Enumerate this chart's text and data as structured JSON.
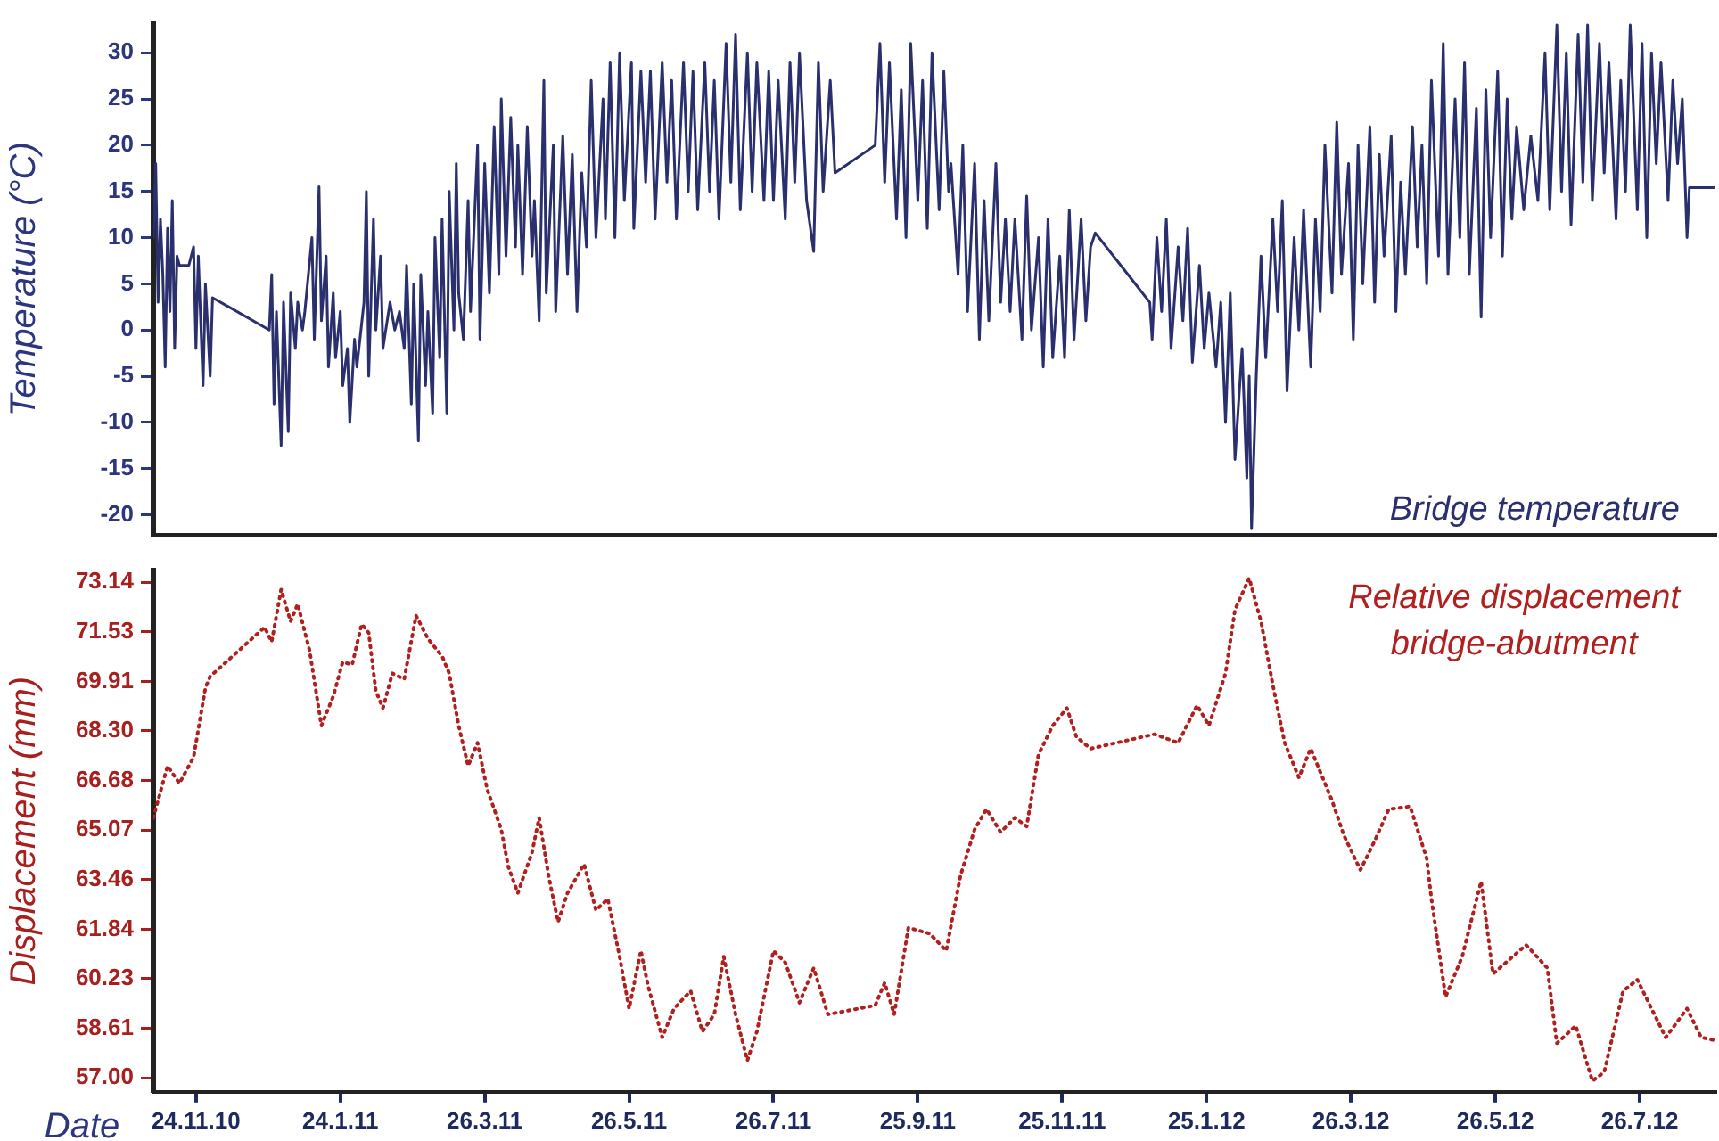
{
  "chart_data": [
    {
      "type": "line",
      "ylabel": "Temperature (°C)",
      "xlim": [
        "2010-11-06",
        "2012-08-27"
      ],
      "ylim": [
        -22.2,
        33.2
      ],
      "yticks": [
        -20,
        -15,
        -10,
        -5,
        0,
        5,
        10,
        15,
        20,
        25,
        30
      ],
      "tick_labels": "y",
      "legend": "bottom right",
      "marker": "none",
      "line_style": "solid",
      "series": [
        {
          "name": "Bridge temperature",
          "color": "#2a2f6e",
          "x": [
            "2010-11-06",
            "2010-11-07",
            "2010-11-08",
            "2010-11-09",
            "2010-11-10",
            "2010-11-11",
            "2010-11-12",
            "2010-11-13",
            "2010-11-14",
            "2010-11-15",
            "2010-11-16",
            "2010-11-17",
            "2010-11-21",
            "2010-11-23",
            "2010-11-24",
            "2010-11-25",
            "2010-11-27",
            "2010-11-28",
            "2010-11-30",
            "2010-12-01",
            "2010-12-25",
            "2010-12-26",
            "2010-12-27",
            "2010-12-28",
            "2010-12-30",
            "2010-12-31",
            "2011-01-02",
            "2011-01-03",
            "2011-01-05",
            "2011-01-06",
            "2011-01-08",
            "2011-01-09",
            "2011-01-12",
            "2011-01-13",
            "2011-01-15",
            "2011-01-16",
            "2011-01-18",
            "2011-01-19",
            "2011-01-21",
            "2011-01-22",
            "2011-01-24",
            "2011-01-25",
            "2011-01-27",
            "2011-01-28",
            "2011-01-30",
            "2011-01-31",
            "2011-02-03",
            "2011-02-04",
            "2011-02-05",
            "2011-02-07",
            "2011-02-08",
            "2011-02-10",
            "2011-02-11",
            "2011-02-14",
            "2011-02-16",
            "2011-02-18",
            "2011-02-20",
            "2011-02-21",
            "2011-02-23",
            "2011-02-24",
            "2011-02-26",
            "2011-02-27",
            "2011-03-01",
            "2011-03-02",
            "2011-03-04",
            "2011-03-05",
            "2011-03-07",
            "2011-03-08",
            "2011-03-10",
            "2011-03-11",
            "2011-03-13",
            "2011-03-14",
            "2011-03-15",
            "2011-03-17",
            "2011-03-19",
            "2011-03-20",
            "2011-03-23",
            "2011-03-24",
            "2011-03-26",
            "2011-03-28",
            "2011-03-30",
            "2011-04-01",
            "2011-04-02",
            "2011-04-04",
            "2011-04-06",
            "2011-04-08",
            "2011-04-09",
            "2011-04-11",
            "2011-04-13",
            "2011-04-15",
            "2011-04-16",
            "2011-04-18",
            "2011-04-20",
            "2011-04-21",
            "2011-04-24",
            "2011-04-25",
            "2011-04-28",
            "2011-04-30",
            "2011-05-02",
            "2011-05-04",
            "2011-05-06",
            "2011-05-08",
            "2011-05-10",
            "2011-05-12",
            "2011-05-15",
            "2011-05-16",
            "2011-05-18",
            "2011-05-20",
            "2011-05-22",
            "2011-05-24",
            "2011-05-27",
            "2011-05-28",
            "2011-05-31",
            "2011-06-02",
            "2011-06-04",
            "2011-06-06",
            "2011-06-09",
            "2011-06-11",
            "2011-06-13",
            "2011-06-15",
            "2011-06-18",
            "2011-06-20",
            "2011-06-22",
            "2011-06-24",
            "2011-06-27",
            "2011-06-29",
            "2011-07-01",
            "2011-07-03",
            "2011-07-06",
            "2011-07-08",
            "2011-07-10",
            "2011-07-12",
            "2011-07-15",
            "2011-07-17",
            "2011-07-19",
            "2011-07-22",
            "2011-07-24",
            "2011-07-26",
            "2011-07-28",
            "2011-07-31",
            "2011-08-02",
            "2011-08-04",
            "2011-08-06",
            "2011-08-09",
            "2011-08-12",
            "2011-08-14",
            "2011-08-16",
            "2011-08-19",
            "2011-08-21",
            "2011-09-07",
            "2011-09-09",
            "2011-09-11",
            "2011-09-13",
            "2011-09-16",
            "2011-09-18",
            "2011-09-20",
            "2011-09-22",
            "2011-09-25",
            "2011-09-27",
            "2011-09-29",
            "2011-10-01",
            "2011-10-04",
            "2011-10-06",
            "2011-10-08",
            "2011-10-09",
            "2011-10-12",
            "2011-10-14",
            "2011-10-16",
            "2011-10-19",
            "2011-10-21",
            "2011-10-23",
            "2011-10-25",
            "2011-10-28",
            "2011-10-30",
            "2011-11-01",
            "2011-11-03",
            "2011-11-05",
            "2011-11-08",
            "2011-11-10",
            "2011-11-12",
            "2011-11-15",
            "2011-11-17",
            "2011-11-19",
            "2011-11-21",
            "2011-11-24",
            "2011-11-26",
            "2011-11-28",
            "2011-11-30",
            "2011-12-03",
            "2011-12-05",
            "2011-12-07",
            "2011-12-09",
            "2012-01-01",
            "2012-01-02",
            "2012-01-04",
            "2012-01-06",
            "2012-01-08",
            "2012-01-10",
            "2012-01-13",
            "2012-01-15",
            "2012-01-17",
            "2012-01-19",
            "2012-01-22",
            "2012-01-24",
            "2012-01-26",
            "2012-01-29",
            "2012-01-31",
            "2012-02-02",
            "2012-02-04",
            "2012-02-06",
            "2012-02-09",
            "2012-02-11",
            "2012-02-12",
            "2012-02-13",
            "2012-02-15",
            "2012-02-17",
            "2012-02-19",
            "2012-02-22",
            "2012-02-24",
            "2012-02-26",
            "2012-02-28",
            "2012-03-02",
            "2012-03-04",
            "2012-03-06",
            "2012-03-09",
            "2012-03-11",
            "2012-03-13",
            "2012-03-15",
            "2012-03-18",
            "2012-03-20",
            "2012-03-22",
            "2012-03-25",
            "2012-03-27",
            "2012-03-29",
            "2012-03-31",
            "2012-04-03",
            "2012-04-05",
            "2012-04-07",
            "2012-04-09",
            "2012-04-12",
            "2012-04-14",
            "2012-04-16",
            "2012-04-18",
            "2012-04-21",
            "2012-04-23",
            "2012-04-25",
            "2012-04-27",
            "2012-04-29",
            "2012-05-02",
            "2012-05-04",
            "2012-05-06",
            "2012-05-09",
            "2012-05-11",
            "2012-05-13",
            "2012-05-15",
            "2012-05-18",
            "2012-05-20",
            "2012-05-22",
            "2012-05-24",
            "2012-05-27",
            "2012-05-29",
            "2012-05-31",
            "2012-06-02",
            "2012-06-04",
            "2012-06-07",
            "2012-06-10",
            "2012-06-13",
            "2012-06-16",
            "2012-06-18",
            "2012-06-21",
            "2012-06-23",
            "2012-06-25",
            "2012-06-27",
            "2012-06-30",
            "2012-07-02",
            "2012-07-04",
            "2012-07-06",
            "2012-07-09",
            "2012-07-11",
            "2012-07-13",
            "2012-07-16",
            "2012-07-18",
            "2012-07-20",
            "2012-07-22",
            "2012-07-25",
            "2012-07-27",
            "2012-07-29",
            "2012-07-31",
            "2012-08-02",
            "2012-08-04",
            "2012-08-07",
            "2012-08-09",
            "2012-08-11",
            "2012-08-13",
            "2012-08-15",
            "2012-08-16",
            "2012-08-27"
          ],
          "values": [
            10,
            18,
            3,
            12,
            6,
            -4,
            11,
            2,
            14,
            -2,
            8,
            7,
            7,
            9,
            -2,
            8,
            -6,
            5,
            -5,
            3.5,
            0,
            6,
            -8,
            2,
            -12.5,
            3,
            -11,
            4,
            -2,
            3,
            0,
            2,
            10,
            -1,
            15.5,
            1,
            8,
            -4,
            4,
            -3,
            2,
            -6,
            -2,
            -10,
            -1,
            -4,
            3,
            15,
            -5,
            12,
            0,
            8,
            -2,
            3,
            0,
            2,
            -2,
            7,
            -8,
            5,
            -12,
            6,
            -6,
            2,
            -9,
            10,
            -3,
            12,
            -9,
            15,
            0,
            18,
            4,
            -1,
            14,
            2,
            20,
            -1,
            18,
            4,
            22,
            6,
            25,
            8,
            23,
            9,
            20,
            6,
            22,
            8,
            14,
            1,
            27,
            4,
            20,
            2,
            21,
            6,
            19,
            2,
            17,
            9,
            27,
            10,
            25,
            12,
            29,
            10,
            30,
            14,
            29,
            11,
            28,
            16,
            28,
            12,
            29,
            16,
            27,
            12,
            29,
            15,
            28,
            13,
            29,
            15,
            27,
            12,
            31,
            16,
            32,
            13,
            30,
            15,
            29,
            14,
            28,
            14,
            27,
            12,
            29,
            16,
            30,
            14,
            8.5,
            29,
            15,
            27,
            17,
            20,
            31,
            16,
            29,
            12,
            26,
            10,
            31,
            14,
            27,
            11,
            30,
            13,
            28,
            15,
            18,
            6,
            20,
            2,
            18,
            -1,
            14,
            1,
            18,
            3,
            12,
            2,
            12,
            -1,
            14.5,
            0,
            10,
            -4,
            12,
            -3,
            8,
            -3,
            13,
            -1,
            12,
            1,
            9,
            10.5,
            3,
            -1,
            10,
            2,
            12,
            -2,
            9,
            1,
            11,
            -3.5,
            7,
            -2,
            4,
            -4,
            3,
            -10,
            4,
            -14,
            -2,
            -16,
            -5,
            -21.5,
            -5,
            8,
            -3,
            12,
            2,
            14,
            -6.6,
            10,
            0,
            13,
            -4,
            12,
            2,
            20,
            4,
            22.5,
            6,
            18,
            -1,
            20,
            5,
            22,
            3,
            19,
            8,
            21,
            2,
            16,
            6,
            22,
            9,
            20,
            5,
            27,
            8,
            31,
            6,
            25,
            10,
            29,
            6,
            24,
            1.4,
            26,
            10,
            28,
            8,
            25,
            12,
            22,
            13,
            21,
            14,
            30,
            13,
            33,
            15,
            30,
            11.4,
            32,
            16,
            33,
            14,
            31,
            17,
            29,
            12,
            27,
            15,
            33,
            13,
            31,
            10,
            30,
            18,
            29,
            14,
            27,
            18,
            25,
            10,
            15.4,
            15.4
          ]
        }
      ]
    },
    {
      "type": "line",
      "xlabel": "Date",
      "ylabel": "Displacement (mm)",
      "xlim": [
        "2010-11-06",
        "2012-08-27"
      ],
      "xticks": [
        {
          "value": "2010-11-24",
          "label": "24.11.10"
        },
        {
          "value": "2011-01-24",
          "label": "24.1.11"
        },
        {
          "value": "2011-03-26",
          "label": "26.3.11"
        },
        {
          "value": "2011-05-26",
          "label": "26.5.11"
        },
        {
          "value": "2011-07-26",
          "label": "26.7.11"
        },
        {
          "value": "2011-09-25",
          "label": "25.9.11"
        },
        {
          "value": "2011-11-25",
          "label": "25.11.11"
        },
        {
          "value": "2012-01-25",
          "label": "25.1.12"
        },
        {
          "value": "2012-03-26",
          "label": "26.3.12"
        },
        {
          "value": "2012-05-26",
          "label": "26.5.12"
        },
        {
          "value": "2012-07-26",
          "label": "26.7.12"
        }
      ],
      "ylim": [
        56.55,
        73.53
      ],
      "yticks": [
        {
          "value": 57,
          "label": "57.00"
        },
        {
          "value": 58.61,
          "label": "58.61"
        },
        {
          "value": 60.23,
          "label": "60.23"
        },
        {
          "value": 61.84,
          "label": "61.84"
        },
        {
          "value": 63.46,
          "label": "63.46"
        },
        {
          "value": 65.07,
          "label": "65.07"
        },
        {
          "value": 66.68,
          "label": "66.68"
        },
        {
          "value": 68.3,
          "label": "68.30"
        },
        {
          "value": 69.91,
          "label": "69.91"
        },
        {
          "value": 71.53,
          "label": "71.53"
        },
        {
          "value": 73.14,
          "label": "73.14"
        }
      ],
      "legend": "top right",
      "marker": "none",
      "line_style": "dotted",
      "series": [
        {
          "name": "Relative displacement bridge-abutment",
          "color": "#b0201e",
          "x": [
            "2010-11-06",
            "2010-11-12",
            "2010-11-17",
            "2010-11-23",
            "2010-11-28",
            "2010-11-30",
            "2010-12-23",
            "2010-12-26",
            "2010-12-30",
            "2011-01-03",
            "2011-01-06",
            "2011-01-11",
            "2011-01-16",
            "2011-01-21",
            "2011-01-25",
            "2011-01-29",
            "2011-02-02",
            "2011-02-05",
            "2011-02-08",
            "2011-02-11",
            "2011-02-15",
            "2011-02-20",
            "2011-02-25",
            "2011-03-02",
            "2011-03-08",
            "2011-03-11",
            "2011-03-15",
            "2011-03-19",
            "2011-03-23",
            "2011-03-27",
            "2011-04-02",
            "2011-04-05",
            "2011-04-09",
            "2011-04-15",
            "2011-04-18",
            "2011-04-22",
            "2011-04-26",
            "2011-04-30",
            "2011-05-07",
            "2011-05-12",
            "2011-05-17",
            "2011-05-22",
            "2011-05-26",
            "2011-05-31",
            "2011-06-03",
            "2011-06-09",
            "2011-06-14",
            "2011-06-21",
            "2011-06-26",
            "2011-07-01",
            "2011-07-05",
            "2011-07-10",
            "2011-07-15",
            "2011-07-19",
            "2011-07-26",
            "2011-07-31",
            "2011-08-06",
            "2011-08-12",
            "2011-08-18",
            "2011-09-07",
            "2011-09-11",
            "2011-09-15",
            "2011-09-21",
            "2011-09-30",
            "2011-10-07",
            "2011-10-13",
            "2011-10-19",
            "2011-10-24",
            "2011-10-30",
            "2011-11-05",
            "2011-11-10",
            "2011-11-15",
            "2011-11-21",
            "2011-11-27",
            "2011-12-01",
            "2011-12-07",
            "2012-01-03",
            "2012-01-13",
            "2012-01-21",
            "2012-01-26",
            "2012-02-02",
            "2012-02-06",
            "2012-02-12",
            "2012-02-17",
            "2012-02-22",
            "2012-02-27",
            "2012-03-04",
            "2012-03-09",
            "2012-03-18",
            "2012-03-23",
            "2012-03-30",
            "2012-04-05",
            "2012-04-11",
            "2012-04-20",
            "2012-04-27",
            "2012-04-29",
            "2012-05-05",
            "2012-05-12",
            "2012-05-20",
            "2012-05-25",
            "2012-06-08",
            "2012-06-17",
            "2012-06-21",
            "2012-06-29",
            "2012-07-06",
            "2012-07-11",
            "2012-07-19",
            "2012-07-25",
            "2012-08-06",
            "2012-08-15",
            "2012-08-21",
            "2012-08-27"
          ],
          "values": [
            65.47,
            67.16,
            66.59,
            67.44,
            69.7,
            70.07,
            71.67,
            71.2,
            72.9,
            71.86,
            72.43,
            70.92,
            68.47,
            69.42,
            70.54,
            70.45,
            71.77,
            71.49,
            69.6,
            69.04,
            70.17,
            69.98,
            72.05,
            71.3,
            70.73,
            70.17,
            68.47,
            67.16,
            67.91,
            66.41,
            65.09,
            63.87,
            63.02,
            64.34,
            65.47,
            63.58,
            62.08,
            63.02,
            63.96,
            62.46,
            62.83,
            60.95,
            59.26,
            61.14,
            60.01,
            58.32,
            59.26,
            59.83,
            58.51,
            59.07,
            60.95,
            59.07,
            57.57,
            58.51,
            61.14,
            60.76,
            59.45,
            60.58,
            59.07,
            59.36,
            60.1,
            59.07,
            61.89,
            61.7,
            61.14,
            63.58,
            65.09,
            65.75,
            65,
            65.47,
            65.19,
            67.53,
            68.47,
            69.04,
            68.1,
            67.72,
            68.19,
            67.91,
            69.13,
            68.47,
            70.17,
            72.24,
            73.27,
            71.86,
            69.79,
            67.91,
            66.78,
            67.72,
            66.03,
            64.9,
            63.77,
            64.71,
            65.75,
            65.84,
            64.15,
            62.83,
            59.64,
            60.95,
            63.4,
            60.39,
            61.33,
            60.58,
            58.13,
            58.7,
            56.9,
            57.19,
            59.83,
            60.2,
            58.32,
            59.26,
            58.32,
            58.22
          ]
        }
      ]
    }
  ]
}
